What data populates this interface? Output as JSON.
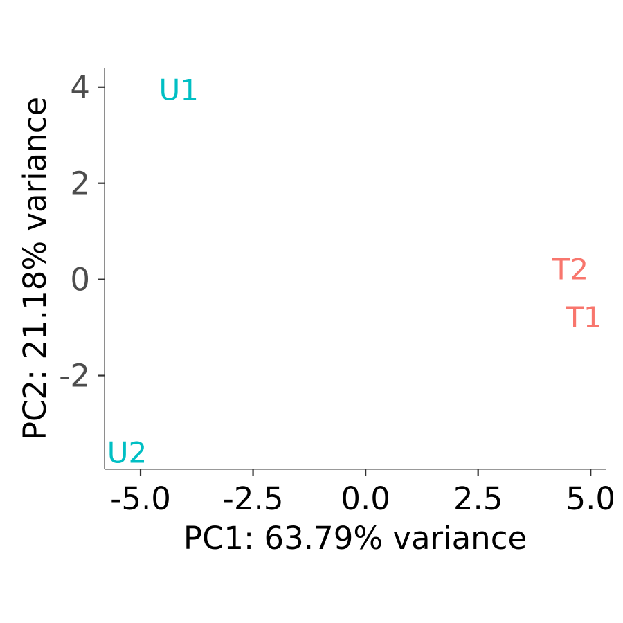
{
  "chart_data": {
    "type": "scatter",
    "title": "",
    "xlabel": "PC1: 63.79% variance",
    "ylabel": "PC2: 21.18% variance",
    "xlim": [
      -5.8,
      5.35
    ],
    "ylim": [
      -3.95,
      4.4
    ],
    "xticks": [
      -5.0,
      -2.5,
      0.0,
      2.5,
      5.0
    ],
    "xtick_labels": [
      "-5.0",
      "-2.5",
      "0.0",
      "2.5",
      "5.0"
    ],
    "yticks": [
      4,
      2,
      0,
      -2
    ],
    "ytick_labels": [
      "4",
      "2",
      "0",
      "-2"
    ],
    "grid": false,
    "points": [
      {
        "label": "U1",
        "x": -4.15,
        "y": 3.95,
        "color": "#00BFC4"
      },
      {
        "label": "U2",
        "x": -5.3,
        "y": -3.6,
        "color": "#00BFC4"
      },
      {
        "label": "T2",
        "x": 4.55,
        "y": 0.22,
        "color": "#F8766D"
      },
      {
        "label": "T1",
        "x": 4.85,
        "y": -0.78,
        "color": "#F8766D"
      }
    ]
  }
}
